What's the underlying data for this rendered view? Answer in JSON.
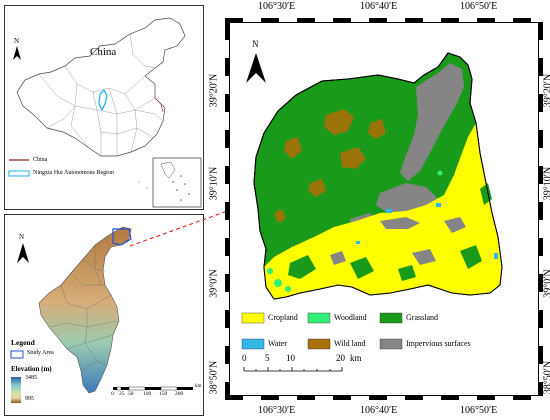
{
  "china_map": {
    "title": "China",
    "north": "N",
    "legend": [
      {
        "label": "China",
        "color": "#8b2a2a"
      },
      {
        "label": "Ningxia Hui Autonomous Region",
        "color": "#33b7e8"
      }
    ]
  },
  "ningxia_map": {
    "north": "N",
    "legend_title": "Legend",
    "study_area": "Study Area",
    "elevation_title": "Elevation (m)",
    "elevation_max": "3485",
    "elevation_min": "995",
    "scale_ticks": [
      "0",
      "25",
      "50",
      "100",
      "150",
      "200"
    ],
    "scale_unit": "km"
  },
  "study_map": {
    "north": "N",
    "lon_ticks": [
      "106°30′E",
      "106°40′E",
      "106°50′E"
    ],
    "lat_ticks": [
      "39°20′N",
      "39°10′N",
      "39°0′N",
      "38°50′N"
    ],
    "scale_ticks": [
      "0",
      "5",
      "10",
      "20"
    ],
    "scale_unit": "km",
    "legend": [
      {
        "label": "Cropland",
        "color": "#ffff00"
      },
      {
        "label": "Woodland",
        "color": "#33ee77"
      },
      {
        "label": "Grassland",
        "color": "#1a9a1a"
      },
      {
        "label": "Water",
        "color": "#33b7e8"
      },
      {
        "label": "Wild land",
        "color": "#a8700a"
      },
      {
        "label": "Impervious surfaces",
        "color": "#858585"
      }
    ]
  }
}
